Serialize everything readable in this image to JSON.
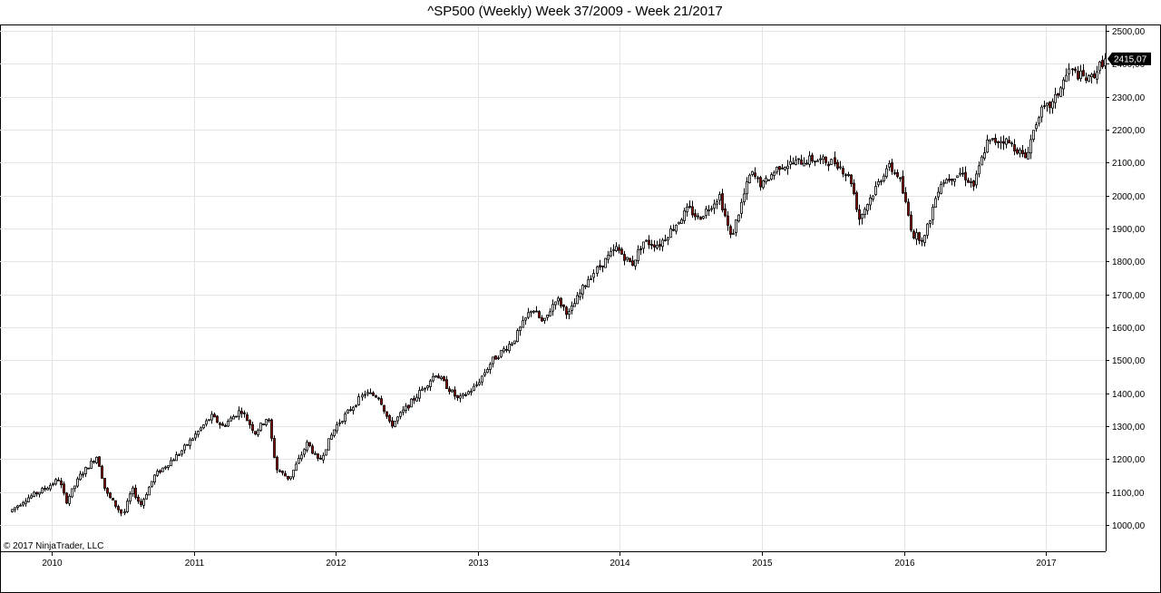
{
  "chart_data": {
    "type": "candlestick",
    "title": "^SP500 (Weekly)  Week 37/2009 - Week 21/2017",
    "copyright": "© 2017 NinjaTrader, LLC",
    "last_price_label": "2415,07",
    "ylim": [
      930,
      2500
    ],
    "grid": true,
    "y_ticks": [
      "2500,00",
      "2400,00",
      "2300,00",
      "2200,00",
      "2100,00",
      "2000,00",
      "1900,00",
      "1800,00",
      "1700,00",
      "1600,00",
      "1500,00",
      "1400,00",
      "1300,00",
      "1200,00",
      "1100,00",
      "1000,00"
    ],
    "x_ticks": [
      "2010",
      "2011",
      "2012",
      "2013",
      "2014",
      "2015",
      "2016",
      "2017"
    ],
    "x_range": [
      2009.7,
      2017.41
    ],
    "colors": {
      "up_fill": "#ffffff",
      "down_fill": "#8b0000",
      "outline": "#000000",
      "grid": "#e4e4e4",
      "price_marker": "#000000"
    },
    "anchors": [
      [
        2009.7,
        1040
      ],
      [
        2009.82,
        1080
      ],
      [
        2009.95,
        1110
      ],
      [
        2010.05,
        1140
      ],
      [
        2010.1,
        1070
      ],
      [
        2010.2,
        1150
      ],
      [
        2010.32,
        1210
      ],
      [
        2010.38,
        1100
      ],
      [
        2010.5,
        1030
      ],
      [
        2010.56,
        1110
      ],
      [
        2010.62,
        1060
      ],
      [
        2010.72,
        1150
      ],
      [
        2010.9,
        1220
      ],
      [
        2011.0,
        1270
      ],
      [
        2011.12,
        1330
      ],
      [
        2011.2,
        1300
      ],
      [
        2011.33,
        1350
      ],
      [
        2011.43,
        1280
      ],
      [
        2011.52,
        1330
      ],
      [
        2011.58,
        1170
      ],
      [
        2011.67,
        1140
      ],
      [
        2011.8,
        1250
      ],
      [
        2011.88,
        1190
      ],
      [
        2012.0,
        1300
      ],
      [
        2012.2,
        1400
      ],
      [
        2012.3,
        1390
      ],
      [
        2012.38,
        1300
      ],
      [
        2012.5,
        1360
      ],
      [
        2012.62,
        1420
      ],
      [
        2012.7,
        1460
      ],
      [
        2012.86,
        1380
      ],
      [
        2012.98,
        1420
      ],
      [
        2013.1,
        1500
      ],
      [
        2013.25,
        1560
      ],
      [
        2013.38,
        1660
      ],
      [
        2013.46,
        1610
      ],
      [
        2013.55,
        1690
      ],
      [
        2013.64,
        1640
      ],
      [
        2013.78,
        1750
      ],
      [
        2013.97,
        1840
      ],
      [
        2014.08,
        1790
      ],
      [
        2014.16,
        1860
      ],
      [
        2014.27,
        1850
      ],
      [
        2014.48,
        1960
      ],
      [
        2014.55,
        1930
      ],
      [
        2014.7,
        2000
      ],
      [
        2014.78,
        1870
      ],
      [
        2014.92,
        2070
      ],
      [
        2015.0,
        2030
      ],
      [
        2015.12,
        2090
      ],
      [
        2015.35,
        2110
      ],
      [
        2015.52,
        2100
      ],
      [
        2015.62,
        2050
      ],
      [
        2015.68,
        1930
      ],
      [
        2015.78,
        2010
      ],
      [
        2015.88,
        2090
      ],
      [
        2015.96,
        2060
      ],
      [
        2016.06,
        1880
      ],
      [
        2016.14,
        1870
      ],
      [
        2016.25,
        2040
      ],
      [
        2016.4,
        2070
      ],
      [
        2016.49,
        2030
      ],
      [
        2016.58,
        2160
      ],
      [
        2016.7,
        2170
      ],
      [
        2016.8,
        2140
      ],
      [
        2016.85,
        2110
      ],
      [
        2016.95,
        2250
      ],
      [
        2017.05,
        2280
      ],
      [
        2017.16,
        2380
      ],
      [
        2017.3,
        2350
      ],
      [
        2017.41,
        2415
      ]
    ]
  }
}
